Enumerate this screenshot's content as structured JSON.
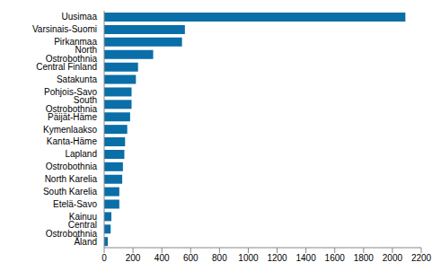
{
  "chart_data": {
    "type": "bar",
    "orientation": "horizontal",
    "categories": [
      "Uusimaa",
      "Varsinais-Suomi",
      "Pirkanmaa",
      "North Ostrobothnia",
      "Central Finland",
      "Satakunta",
      "Pohjois-Savo",
      "South Ostrobothnia",
      "Päijät-Häme",
      "Kymenlaakso",
      "Kanta-Häme",
      "Lapland",
      "Ostrobothnia",
      "North Karelia",
      "South Karelia",
      "Etelä-Savo",
      "Kainuu",
      "Central Ostrobothnia",
      "Åland"
    ],
    "values": [
      2090,
      560,
      540,
      340,
      235,
      220,
      190,
      190,
      180,
      160,
      145,
      140,
      130,
      125,
      105,
      105,
      50,
      45,
      25
    ],
    "color": "#0a6ea8",
    "xlim": [
      0,
      2200
    ],
    "xticks": [
      0,
      200,
      400,
      600,
      800,
      1000,
      1200,
      1400,
      1600,
      1800,
      2000,
      2200
    ],
    "grid": false
  }
}
